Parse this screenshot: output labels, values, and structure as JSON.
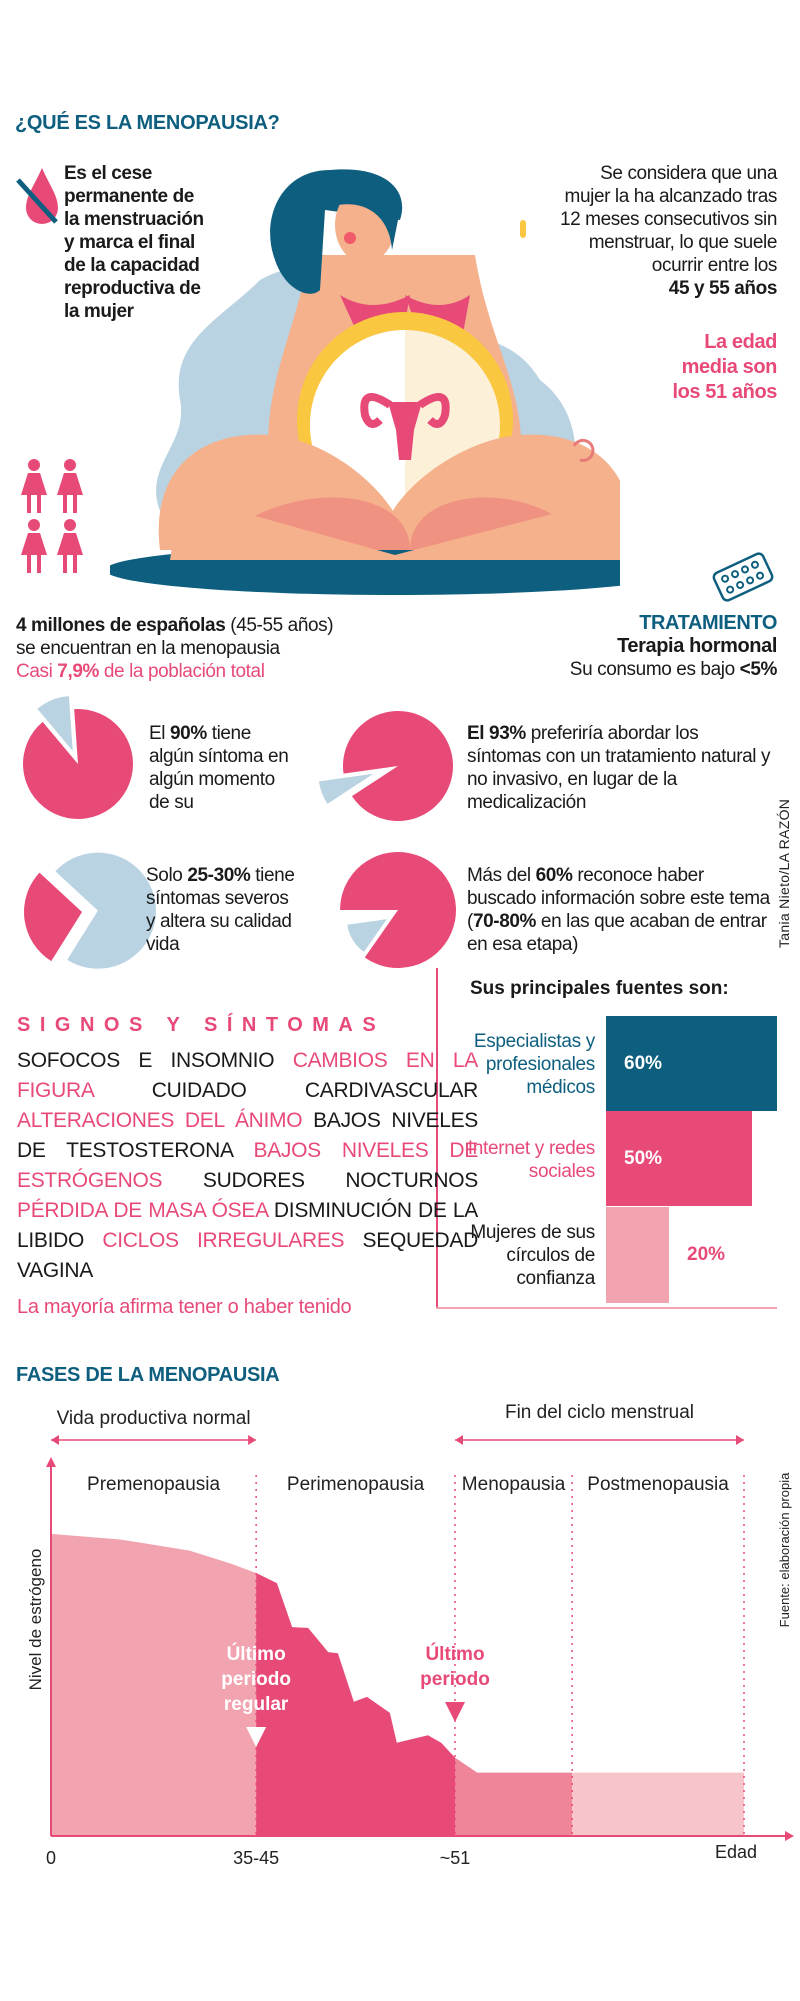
{
  "intro": {
    "title": "¿QUÉ ES LA MENOPAUSIA?",
    "definition": [
      "Es el cese",
      "permanente de",
      "la menstruación",
      "y marca el final",
      "de la capacidad",
      "reproductiva de",
      "la mujer"
    ],
    "criteria": [
      "Se considera que una",
      "mujer la ha alcanzado tras",
      "12 meses consecutivos sin",
      "menstruar, lo que suele",
      "ocurrir entre los"
    ],
    "age_range": "45 y 55 años",
    "average_age": [
      "La edad",
      "media son",
      "los 51 años"
    ]
  },
  "population": {
    "count_bold": "4 millones de españolas",
    "count_rest": " (45-55 años)",
    "line2": "se encuentran en la menopausia",
    "pct_pre": "Casi ",
    "pct": "7,9%",
    "pct_post": " de la población total"
  },
  "treatment": {
    "title": "TRATAMIENTO",
    "name": "Terapia hormonal",
    "usage_pre": "Su consumo es bajo ",
    "usage_value": "<5%"
  },
  "stats": [
    {
      "pre": "El ",
      "bold": "90%",
      "post": " tiene algún síntoma en algún momento de su",
      "value": 90
    },
    {
      "pre": "",
      "bold": "El 93%",
      "post": " preferiría abordar los síntomas con un tratamiento natural y no invasivo, en lugar de la medicalización",
      "value": 93
    },
    {
      "pre": "Solo ",
      "bold": "25-30%",
      "post": " tiene  síntomas severos y altera su calidad vida",
      "value": 28
    },
    {
      "pre": "Más del ",
      "bold": "60%",
      "post": " reconoce haber buscado información sobre este tema (",
      "bold2": "70-80%",
      "post2": " en las que acaban de entrar en esa etapa)",
      "value": 60
    }
  ],
  "credit": "Tania Nieto/LA RAZÓN",
  "sources": {
    "title": "Sus principales fuentes son:",
    "items": [
      {
        "label": "Especialistas y profesionales médicos",
        "value": "60%",
        "pct": 60,
        "color": "#0e5f7f"
      },
      {
        "label": "Internet y redes sociales",
        "value": "50%",
        "pct": 50,
        "color": "#e84a78"
      },
      {
        "label": "Mujeres de sus círculos de confianza",
        "value": "20%",
        "pct": 20,
        "color": "#f2a3b0"
      }
    ]
  },
  "symptoms": {
    "title": "SIGNOS Y SÍNTOMAS",
    "items": [
      {
        "text": "SOFOCOS E INSOMNIO",
        "accent": false
      },
      {
        "text": "CAMBIOS EN LA FIGURA",
        "accent": true
      },
      {
        "text": "CUIDADO CARDIVASCULAR",
        "accent": false
      },
      {
        "text": "ALTERACIONES DEL ÁNIMO",
        "accent": true
      },
      {
        "text": "BAJOS NIVELES DE TESTOSTERONA",
        "accent": false
      },
      {
        "text": "BAJOS NIVELES DE ESTRÓGENOS",
        "accent": true
      },
      {
        "text": "SUDORES NOCTURNOS",
        "accent": false
      },
      {
        "text": "PÉRDIDA DE MASA ÓSEA",
        "accent": true
      },
      {
        "text": "DISMINUCIÓN DE LA LIBIDO",
        "accent": false
      },
      {
        "text": "CICLOS IRREGULARES",
        "accent": true
      },
      {
        "text": "SEQUEDAD VAGINA",
        "accent": false
      }
    ],
    "footer": "La mayoría afirma tener o haber tenido"
  },
  "colors": {
    "teal": "#0e5f7f",
    "pink": "#e84a78",
    "light_pink": "#f2a3b0",
    "light_blue": "#b9d3e2"
  },
  "chart_data": {
    "type": "area",
    "title": "FASES DE LA MENOPAUSIA",
    "ylabel": "Nivel de estrógeno",
    "xlabel": "Edad",
    "source": "Fuente: elaboración propia",
    "x_ticks": [
      {
        "t": 0,
        "label": "0"
      },
      {
        "t": 29.6,
        "label": "35-45"
      },
      {
        "t": 58.3,
        "label": "~51"
      }
    ],
    "xlim": [
      0,
      100
    ],
    "ylim": [
      0,
      100
    ],
    "spans": [
      {
        "label": "Vida productiva normal",
        "from": 0,
        "to": 29.6
      },
      {
        "label": "Fin del ciclo menstrual",
        "from": 58.3,
        "to": 100
      }
    ],
    "phases": [
      {
        "label": "Premenopausia",
        "from": 0,
        "to": 29.6,
        "color": "#f2a3b0"
      },
      {
        "label": "Perimenopausia",
        "from": 29.6,
        "to": 58.3,
        "color": "#e84a78"
      },
      {
        "label": "Menopausia",
        "from": 58.3,
        "to": 75.2,
        "color": "#ef8599"
      },
      {
        "label": "Postmenopausia",
        "from": 75.2,
        "to": 100,
        "color": "#f7c4c9"
      }
    ],
    "estrogen_curve": [
      [
        0,
        81
      ],
      [
        10,
        79.5
      ],
      [
        20,
        76.5
      ],
      [
        26,
        73
      ],
      [
        29.6,
        70.5
      ],
      [
        32.6,
        67.8
      ],
      [
        34.8,
        56
      ],
      [
        37.1,
        55.8
      ],
      [
        40,
        49.3
      ],
      [
        41.4,
        49
      ],
      [
        43.7,
        36
      ],
      [
        45.6,
        37.3
      ],
      [
        48.9,
        33
      ],
      [
        49.9,
        25
      ],
      [
        54.4,
        27
      ],
      [
        56.3,
        25
      ],
      [
        58.3,
        21
      ],
      [
        61.5,
        17
      ],
      [
        100,
        17
      ]
    ],
    "annotations": [
      {
        "label": [
          "Último",
          "periodo",
          "regular"
        ],
        "t": 29.6,
        "color": "#ffffff"
      },
      {
        "label": [
          "Último",
          "periodo"
        ],
        "t": 58.3,
        "color": "#e84a78"
      }
    ]
  }
}
